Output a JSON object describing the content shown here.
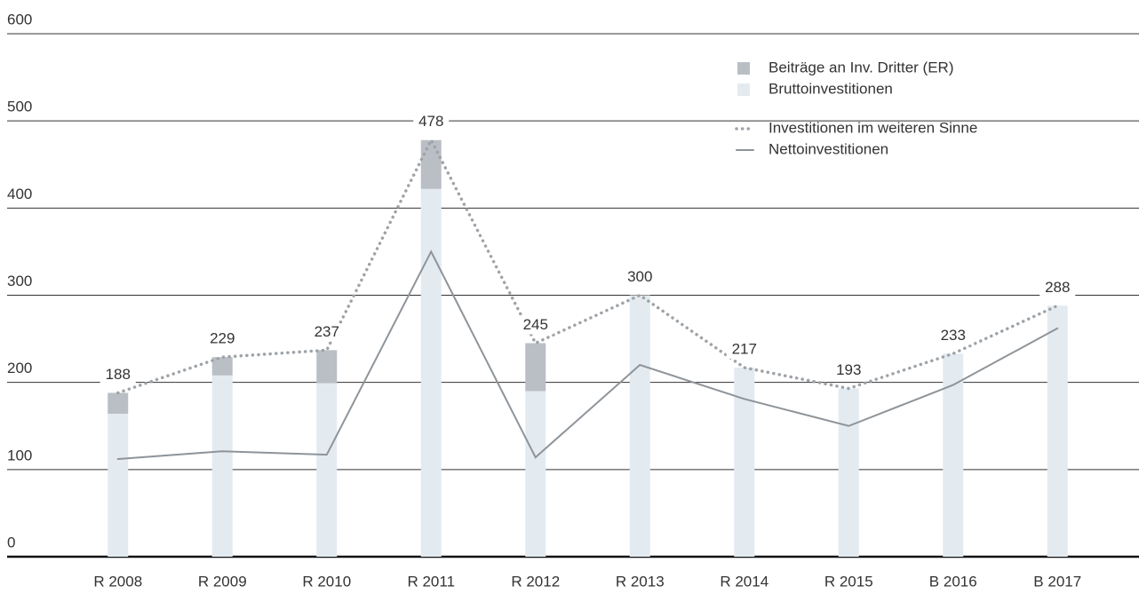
{
  "chart_data": {
    "type": "bar",
    "categories": [
      "R 2008",
      "R 2009",
      "R 2010",
      "R 2011",
      "R 2012",
      "R 2013",
      "R 2014",
      "R 2015",
      "B 2016",
      "B 2017"
    ],
    "series": [
      {
        "name": "Beiträge an Inv. Dritter (ER)",
        "kind": "bar",
        "color": "#b9bfc4",
        "values": [
          24,
          21,
          38,
          56,
          55,
          0,
          0,
          0,
          0,
          0
        ]
      },
      {
        "name": "Bruttoinvestitionen",
        "kind": "bar",
        "color": "#e3ebf1",
        "values": [
          164,
          208,
          199,
          422,
          190,
          300,
          217,
          193,
          233,
          288
        ]
      },
      {
        "name": "Investitionen im weiteren Sinne",
        "kind": "line",
        "dotted": true,
        "data_labels": true,
        "color": "#9ea3a8",
        "values": [
          188,
          229,
          237,
          478,
          245,
          300,
          217,
          193,
          233,
          288
        ]
      },
      {
        "name": "Nettoinvestitionen",
        "kind": "line",
        "dotted": false,
        "data_labels": false,
        "color": "#8e9499",
        "values": [
          112,
          121,
          117,
          350,
          114,
          220,
          181,
          150,
          197,
          262
        ]
      }
    ],
    "ylim": [
      0,
      600
    ],
    "yticks": [
      0,
      100,
      200,
      300,
      400,
      500,
      600
    ],
    "grid": true
  }
}
